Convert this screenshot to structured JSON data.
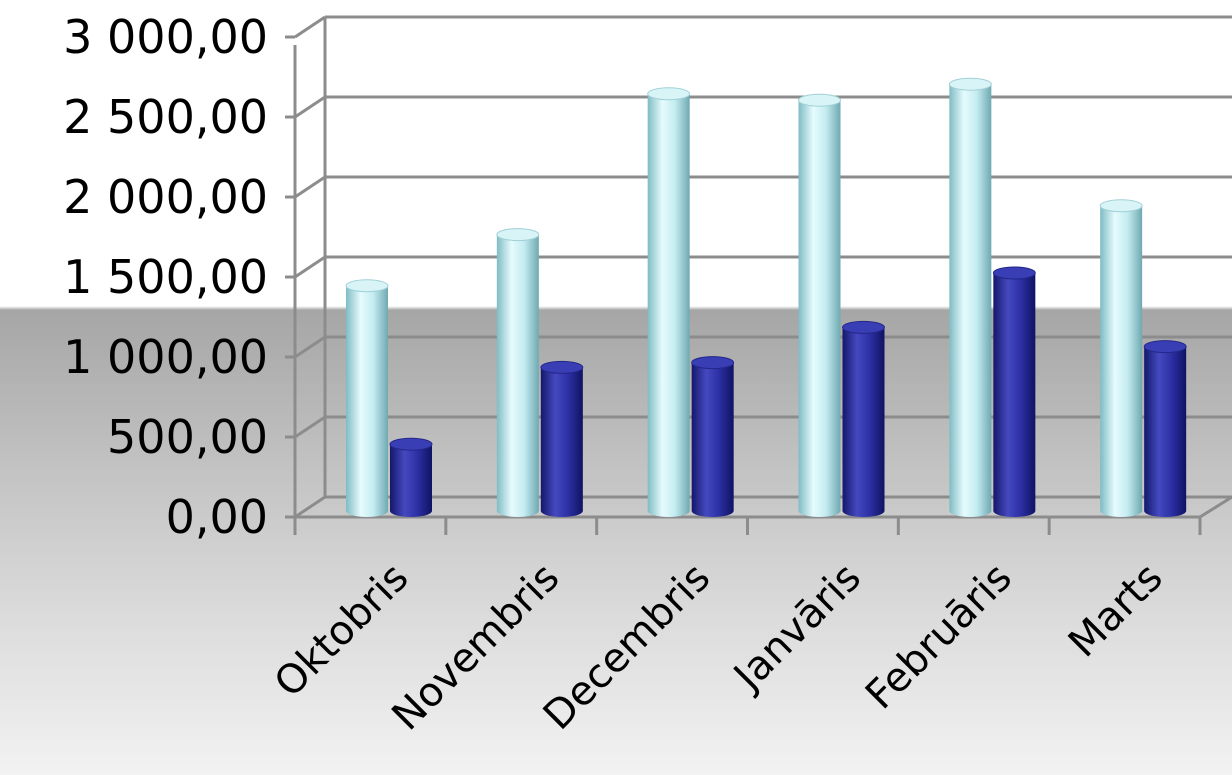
{
  "chart_data": {
    "type": "bar",
    "categories": [
      "Oktobris",
      "Novembris",
      "Decembris",
      "Janvāris",
      "Februāris",
      "Marts"
    ],
    "series": [
      {
        "values": [
          1420,
          1740,
          2620,
          2580,
          2680,
          1920
        ],
        "color": "#bfeaf0"
      },
      {
        "values": [
          430,
          910,
          940,
          1160,
          1500,
          1040
        ],
        "color": "#2b2f9e"
      }
    ],
    "ylim": [
      0,
      3000
    ],
    "y_ticks": [
      {
        "value": 0,
        "label": "0,00"
      },
      {
        "value": 500,
        "label": "500,00"
      },
      {
        "value": 1000,
        "label": "1 000,00"
      },
      {
        "value": 1500,
        "label": "1 500,00"
      },
      {
        "value": 2000,
        "label": "2 000,00"
      },
      {
        "value": 2500,
        "label": "2 500,00"
      },
      {
        "value": 3000,
        "label": "3 000,00"
      }
    ],
    "grid": true,
    "legend": "none",
    "style": "3d-cylinder-clustered-column",
    "title": "",
    "xlabel": "",
    "ylabel": ""
  }
}
